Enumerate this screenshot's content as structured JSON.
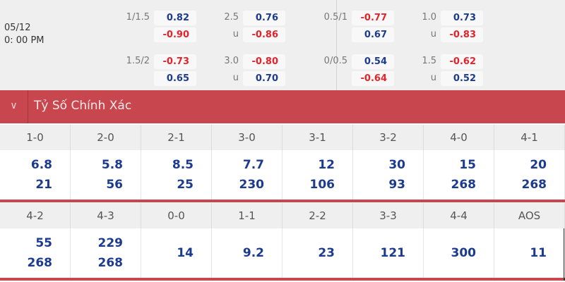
{
  "match": {
    "date": "05/12",
    "time": "0: 00 PM"
  },
  "odds": [
    {
      "hcap": "1/1.5",
      "h1": "0.82",
      "h2": "-0.90",
      "ou": "2.5",
      "ou_u": "u",
      "o1": "0.76",
      "o2": "-0.86"
    },
    {
      "hcap": "1.5/2",
      "h1": "-0.73",
      "h2": "0.65",
      "ou": "3.0",
      "ou_u": "u",
      "o1": "-0.80",
      "o2": "0.70"
    },
    {
      "hcap": "0.5/1",
      "h1": "-0.77",
      "h2": "0.67",
      "ou": "1.0",
      "ou_u": "u",
      "o1": "0.73",
      "o2": "-0.83"
    },
    {
      "hcap": "0/0.5",
      "h1": "0.54",
      "h2": "-0.64",
      "ou": "1.5",
      "ou_u": "u",
      "o1": "-0.62",
      "o2": "0.52"
    }
  ],
  "section": {
    "title": "Tỷ Số Chính Xác",
    "chevron": "chevron-down-icon"
  },
  "scores1": [
    {
      "score": "1-0",
      "a": "6.8",
      "b": "21"
    },
    {
      "score": "2-0",
      "a": "5.8",
      "b": "56"
    },
    {
      "score": "2-1",
      "a": "8.5",
      "b": "25"
    },
    {
      "score": "3-0",
      "a": "7.7",
      "b": "230"
    },
    {
      "score": "3-1",
      "a": "12",
      "b": "106"
    },
    {
      "score": "3-2",
      "a": "30",
      "b": "93"
    },
    {
      "score": "4-0",
      "a": "15",
      "b": "268"
    },
    {
      "score": "4-1",
      "a": "20",
      "b": "268"
    }
  ],
  "scores2": [
    {
      "score": "4-2",
      "a": "55",
      "b": "268"
    },
    {
      "score": "4-3",
      "a": "229",
      "b": "268"
    },
    {
      "score": "0-0",
      "a": "14"
    },
    {
      "score": "1-1",
      "a": "9.2"
    },
    {
      "score": "2-2",
      "a": "23"
    },
    {
      "score": "3-3",
      "a": "121"
    },
    {
      "score": "4-4",
      "a": "300"
    },
    {
      "score": "AOS",
      "a": "11"
    }
  ],
  "colors": {
    "positive": "#1c3b8f",
    "negative": "#e5232b",
    "header": "#c8474f"
  }
}
